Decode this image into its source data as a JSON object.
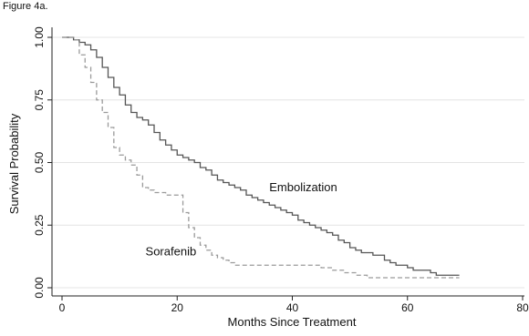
{
  "figure_label": "Figure 4a.",
  "chart_data": {
    "type": "line",
    "title": "",
    "xlabel": "Months Since Treatment",
    "ylabel": "Survival Probability",
    "xlim": [
      0,
      80
    ],
    "ylim": [
      0,
      1
    ],
    "x_ticks": [
      0,
      20,
      40,
      60,
      80
    ],
    "x_tick_labels": [
      "0",
      "20",
      "40",
      "60",
      "80"
    ],
    "y_ticks": [
      0,
      0.25,
      0.5,
      0.75,
      1
    ],
    "y_tick_labels": [
      "0.00",
      "0.25",
      "0.50",
      "0.75",
      "1.00"
    ],
    "grid": "horizontal",
    "legend": "none",
    "series": [
      {
        "name": "Embolization",
        "style": "solid",
        "color": "#555555",
        "label_at": [
          36,
          0.385
        ],
        "points": [
          [
            0,
            1.0
          ],
          [
            1,
            1.0
          ],
          [
            2,
            0.99
          ],
          [
            3,
            0.98
          ],
          [
            4,
            0.97
          ],
          [
            5,
            0.95
          ],
          [
            6,
            0.92
          ],
          [
            7,
            0.88
          ],
          [
            8,
            0.84
          ],
          [
            9,
            0.8
          ],
          [
            10,
            0.77
          ],
          [
            11,
            0.73
          ],
          [
            12,
            0.7
          ],
          [
            13,
            0.68
          ],
          [
            14,
            0.67
          ],
          [
            15,
            0.65
          ],
          [
            16,
            0.62
          ],
          [
            17,
            0.59
          ],
          [
            18,
            0.57
          ],
          [
            19,
            0.55
          ],
          [
            20,
            0.53
          ],
          [
            21,
            0.52
          ],
          [
            22,
            0.51
          ],
          [
            23,
            0.5
          ],
          [
            24,
            0.48
          ],
          [
            25,
            0.47
          ],
          [
            26,
            0.45
          ],
          [
            27,
            0.43
          ],
          [
            28,
            0.42
          ],
          [
            29,
            0.41
          ],
          [
            30,
            0.4
          ],
          [
            31,
            0.39
          ],
          [
            32,
            0.37
          ],
          [
            33,
            0.36
          ],
          [
            34,
            0.35
          ],
          [
            35,
            0.34
          ],
          [
            36,
            0.33
          ],
          [
            37,
            0.32
          ],
          [
            38,
            0.31
          ],
          [
            39,
            0.3
          ],
          [
            40,
            0.29
          ],
          [
            41,
            0.27
          ],
          [
            42,
            0.26
          ],
          [
            43,
            0.25
          ],
          [
            44,
            0.24
          ],
          [
            45,
            0.23
          ],
          [
            46,
            0.22
          ],
          [
            47,
            0.21
          ],
          [
            48,
            0.19
          ],
          [
            49,
            0.18
          ],
          [
            50,
            0.16
          ],
          [
            51,
            0.15
          ],
          [
            52,
            0.14
          ],
          [
            53,
            0.14
          ],
          [
            54,
            0.13
          ],
          [
            55,
            0.13
          ],
          [
            56,
            0.11
          ],
          [
            57,
            0.1
          ],
          [
            58,
            0.09
          ],
          [
            59,
            0.09
          ],
          [
            60,
            0.08
          ],
          [
            61,
            0.07
          ],
          [
            62,
            0.07
          ],
          [
            63,
            0.07
          ],
          [
            64,
            0.06
          ],
          [
            65,
            0.05
          ],
          [
            66,
            0.05
          ],
          [
            67,
            0.05
          ],
          [
            68,
            0.05
          ],
          [
            69,
            0.05
          ]
        ]
      },
      {
        "name": "Sorafenib",
        "style": "dashed",
        "color": "#9a9a9a",
        "label_at": [
          14.5,
          0.13
        ],
        "points": [
          [
            0,
            1.0
          ],
          [
            1,
            1.0
          ],
          [
            2,
            0.99
          ],
          [
            3,
            0.93
          ],
          [
            4,
            0.88
          ],
          [
            5,
            0.82
          ],
          [
            6,
            0.75
          ],
          [
            7,
            0.7
          ],
          [
            8,
            0.64
          ],
          [
            9,
            0.56
          ],
          [
            10,
            0.53
          ],
          [
            11,
            0.51
          ],
          [
            12,
            0.49
          ],
          [
            13,
            0.45
          ],
          [
            14,
            0.4
          ],
          [
            15,
            0.39
          ],
          [
            16,
            0.38
          ],
          [
            17,
            0.38
          ],
          [
            18,
            0.37
          ],
          [
            19,
            0.37
          ],
          [
            20,
            0.37
          ],
          [
            21,
            0.3
          ],
          [
            22,
            0.24
          ],
          [
            23,
            0.2
          ],
          [
            24,
            0.17
          ],
          [
            25,
            0.15
          ],
          [
            26,
            0.13
          ],
          [
            27,
            0.12
          ],
          [
            28,
            0.11
          ],
          [
            29,
            0.1
          ],
          [
            30,
            0.09
          ],
          [
            31,
            0.09
          ],
          [
            32,
            0.09
          ],
          [
            33,
            0.09
          ],
          [
            34,
            0.09
          ],
          [
            35,
            0.09
          ],
          [
            36,
            0.09
          ],
          [
            37,
            0.09
          ],
          [
            38,
            0.09
          ],
          [
            39,
            0.09
          ],
          [
            40,
            0.09
          ],
          [
            41,
            0.09
          ],
          [
            42,
            0.09
          ],
          [
            43,
            0.09
          ],
          [
            44,
            0.09
          ],
          [
            45,
            0.08
          ],
          [
            46,
            0.08
          ],
          [
            47,
            0.07
          ],
          [
            48,
            0.07
          ],
          [
            49,
            0.06
          ],
          [
            50,
            0.06
          ],
          [
            51,
            0.05
          ],
          [
            52,
            0.05
          ],
          [
            53,
            0.04
          ],
          [
            54,
            0.04
          ],
          [
            55,
            0.04
          ],
          [
            56,
            0.04
          ],
          [
            57,
            0.04
          ],
          [
            58,
            0.04
          ],
          [
            59,
            0.04
          ],
          [
            60,
            0.04
          ],
          [
            61,
            0.04
          ],
          [
            62,
            0.04
          ],
          [
            63,
            0.04
          ],
          [
            64,
            0.04
          ],
          [
            65,
            0.04
          ],
          [
            66,
            0.04
          ],
          [
            67,
            0.04
          ],
          [
            68,
            0.04
          ],
          [
            69,
            0.04
          ]
        ]
      }
    ]
  }
}
